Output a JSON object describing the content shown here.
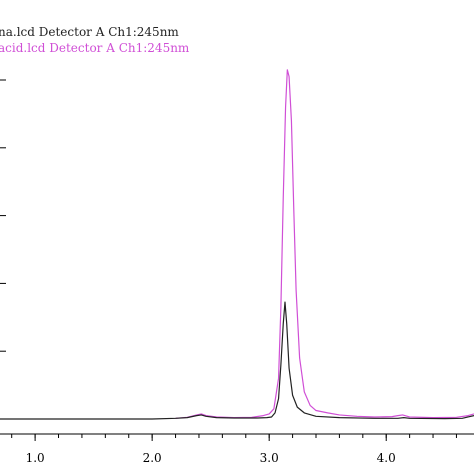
{
  "chart_data": {
    "type": "line",
    "title": "",
    "xlabel": "",
    "ylabel": "",
    "xlim": [
      0.7,
      4.75
    ],
    "ylim": [
      0,
      1.0
    ],
    "x_ticks": [
      1.0,
      2.0,
      3.0,
      4.0
    ],
    "x_tick_labels": [
      "1.0",
      "2.0",
      "3.0",
      "4.0"
    ],
    "y_gridlines": [
      0.2,
      0.4,
      0.6,
      0.8,
      1.0
    ],
    "grid": "horizontal tick marks on left edge",
    "legend": "top-left",
    "series": [
      {
        "name": "na.lcd Detector A Ch1:245nm",
        "color": "#222222",
        "points": [
          [
            0.7,
            0.0
          ],
          [
            1.0,
            0.0
          ],
          [
            1.5,
            0.0
          ],
          [
            2.0,
            0.0
          ],
          [
            2.2,
            0.002
          ],
          [
            2.3,
            0.004
          ],
          [
            2.38,
            0.01
          ],
          [
            2.42,
            0.012
          ],
          [
            2.46,
            0.008
          ],
          [
            2.55,
            0.004
          ],
          [
            2.7,
            0.003
          ],
          [
            2.9,
            0.003
          ],
          [
            2.98,
            0.004
          ],
          [
            3.02,
            0.006
          ],
          [
            3.05,
            0.018
          ],
          [
            3.08,
            0.06
          ],
          [
            3.1,
            0.16
          ],
          [
            3.12,
            0.28
          ],
          [
            3.135,
            0.345
          ],
          [
            3.15,
            0.28
          ],
          [
            3.17,
            0.15
          ],
          [
            3.2,
            0.07
          ],
          [
            3.24,
            0.035
          ],
          [
            3.3,
            0.018
          ],
          [
            3.4,
            0.008
          ],
          [
            3.6,
            0.004
          ],
          [
            3.9,
            0.002
          ],
          [
            4.1,
            0.002
          ],
          [
            4.15,
            0.004
          ],
          [
            4.2,
            0.002
          ],
          [
            4.5,
            0.001
          ],
          [
            4.65,
            0.002
          ],
          [
            4.7,
            0.006
          ],
          [
            4.75,
            0.01
          ]
        ]
      },
      {
        "name": "acid.lcd Detector A Ch1:245nm",
        "color": "#d04fd6",
        "points": [
          [
            2.2,
            0.002
          ],
          [
            2.3,
            0.005
          ],
          [
            2.38,
            0.012
          ],
          [
            2.42,
            0.015
          ],
          [
            2.46,
            0.01
          ],
          [
            2.55,
            0.006
          ],
          [
            2.7,
            0.004
          ],
          [
            2.85,
            0.005
          ],
          [
            2.95,
            0.01
          ],
          [
            3.0,
            0.015
          ],
          [
            3.04,
            0.03
          ],
          [
            3.08,
            0.12
          ],
          [
            3.1,
            0.33
          ],
          [
            3.12,
            0.65
          ],
          [
            3.14,
            0.92
          ],
          [
            3.155,
            1.03
          ],
          [
            3.17,
            1.01
          ],
          [
            3.19,
            0.88
          ],
          [
            3.21,
            0.62
          ],
          [
            3.23,
            0.38
          ],
          [
            3.26,
            0.18
          ],
          [
            3.3,
            0.08
          ],
          [
            3.35,
            0.04
          ],
          [
            3.4,
            0.025
          ],
          [
            3.5,
            0.018
          ],
          [
            3.6,
            0.012
          ],
          [
            3.75,
            0.008
          ],
          [
            3.9,
            0.006
          ],
          [
            4.05,
            0.007
          ],
          [
            4.1,
            0.01
          ],
          [
            4.14,
            0.012
          ],
          [
            4.2,
            0.006
          ],
          [
            4.4,
            0.004
          ],
          [
            4.6,
            0.005
          ],
          [
            4.7,
            0.01
          ],
          [
            4.75,
            0.015
          ]
        ]
      }
    ]
  }
}
